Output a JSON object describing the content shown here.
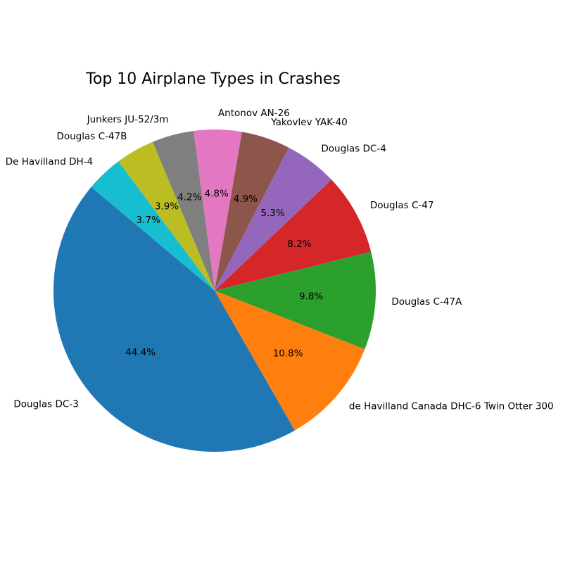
{
  "chart_data": {
    "type": "pie",
    "title": "Top 10 Airplane Types in Crashes",
    "start_angle_deg": 140,
    "direction": "counterclockwise",
    "slices": [
      {
        "label": "Douglas DC-3",
        "percent": 44.4,
        "pct_text": "44.4%",
        "color": "#1f77b4"
      },
      {
        "label": "de Havilland Canada DHC-6 Twin Otter 300",
        "percent": 10.8,
        "pct_text": "10.8%",
        "color": "#ff7f0e"
      },
      {
        "label": "Douglas C-47A",
        "percent": 9.8,
        "pct_text": "9.8%",
        "color": "#2ca02c"
      },
      {
        "label": "Douglas C-47",
        "percent": 8.2,
        "pct_text": "8.2%",
        "color": "#d62728"
      },
      {
        "label": "Douglas DC-4",
        "percent": 5.3,
        "pct_text": "5.3%",
        "color": "#9467bd"
      },
      {
        "label": "Yakovlev YAK-40",
        "percent": 4.9,
        "pct_text": "4.9%",
        "color": "#8c564b"
      },
      {
        "label": "Antonov AN-26",
        "percent": 4.8,
        "pct_text": "4.8%",
        "color": "#e377c2"
      },
      {
        "label": "Junkers JU-52/3m",
        "percent": 4.2,
        "pct_text": "4.2%",
        "color": "#7f7f7f"
      },
      {
        "label": "Douglas C-47B",
        "percent": 3.9,
        "pct_text": "3.9%",
        "color": "#bcbd22"
      },
      {
        "label": "De Havilland DH-4",
        "percent": 3.7,
        "pct_text": "3.7%",
        "color": "#17becf"
      }
    ]
  }
}
